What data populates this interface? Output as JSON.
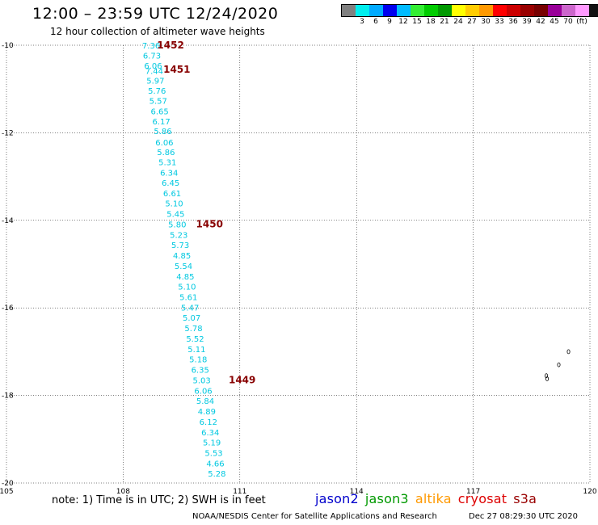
{
  "header": {
    "title": "12:00 – 23:59 UTC 12/24/2020",
    "subtitle": "12 hour collection of altimeter wave heights"
  },
  "legend": {
    "colors": [
      "#808080",
      "#00eeee",
      "#00aaff",
      "#0000ee",
      "#00bbff",
      "#33ee33",
      "#00cc00",
      "#009900",
      "#ffff00",
      "#ffcc00",
      "#ff9900",
      "#ff0000",
      "#cc0000",
      "#990000",
      "#770000",
      "#990099",
      "#cc66cc",
      "#ff99ff",
      "#111111"
    ],
    "labels": [
      {
        "text": "3",
        "idx": 1
      },
      {
        "text": "6",
        "idx": 2
      },
      {
        "text": "9",
        "idx": 3
      },
      {
        "text": "12",
        "idx": 4
      },
      {
        "text": "15",
        "idx": 5
      },
      {
        "text": "18",
        "idx": 6
      },
      {
        "text": "21",
        "idx": 7
      },
      {
        "text": "24",
        "idx": 8
      },
      {
        "text": "27",
        "idx": 9
      },
      {
        "text": "30",
        "idx": 10
      },
      {
        "text": "33",
        "idx": 11
      },
      {
        "text": "36",
        "idx": 12
      },
      {
        "text": "39",
        "idx": 13
      },
      {
        "text": "42",
        "idx": 14
      },
      {
        "text": "45",
        "idx": 15
      },
      {
        "text": "70",
        "idx": 16
      },
      {
        "text": "(ft)",
        "idx": 17
      }
    ]
  },
  "chart_data": {
    "type": "scatter",
    "xlim": [
      105,
      120
    ],
    "ylim": [
      -20,
      -10
    ],
    "x_ticks": [
      105,
      108,
      111,
      114,
      117,
      120
    ],
    "y_ticks": [
      -10,
      -12,
      -14,
      -16,
      -18,
      -20
    ],
    "grid": true,
    "points": [
      {
        "lon": 108.72,
        "lat": -10.0,
        "label": "7.36"
      },
      {
        "lon": 108.74,
        "lat": -10.23,
        "label": "6.73"
      },
      {
        "lon": 108.77,
        "lat": -10.46,
        "label": "6.06"
      },
      {
        "lon": 108.8,
        "lat": -10.58,
        "label": "7.44"
      },
      {
        "lon": 108.83,
        "lat": -10.8,
        "label": "5.97"
      },
      {
        "lon": 108.87,
        "lat": -11.03,
        "label": "5.76"
      },
      {
        "lon": 108.9,
        "lat": -11.26,
        "label": "5.57"
      },
      {
        "lon": 108.94,
        "lat": -11.5,
        "label": "6.65"
      },
      {
        "lon": 108.98,
        "lat": -11.73,
        "label": "6.17"
      },
      {
        "lon": 109.02,
        "lat": -11.96,
        "label": "5.86"
      },
      {
        "lon": 109.06,
        "lat": -12.21,
        "label": "6.06"
      },
      {
        "lon": 109.1,
        "lat": -12.44,
        "label": "5.86"
      },
      {
        "lon": 109.14,
        "lat": -12.67,
        "label": "5.31"
      },
      {
        "lon": 109.18,
        "lat": -12.91,
        "label": "6.34"
      },
      {
        "lon": 109.22,
        "lat": -13.14,
        "label": "6.45"
      },
      {
        "lon": 109.26,
        "lat": -13.38,
        "label": "6.61"
      },
      {
        "lon": 109.31,
        "lat": -13.61,
        "label": "5.10"
      },
      {
        "lon": 109.35,
        "lat": -13.85,
        "label": "5.45"
      },
      {
        "lon": 109.39,
        "lat": -14.09,
        "label": "5.80"
      },
      {
        "lon": 109.43,
        "lat": -14.33,
        "label": "5.23"
      },
      {
        "lon": 109.47,
        "lat": -14.56,
        "label": "5.73"
      },
      {
        "lon": 109.51,
        "lat": -14.8,
        "label": "4.85"
      },
      {
        "lon": 109.55,
        "lat": -15.04,
        "label": "5.54"
      },
      {
        "lon": 109.6,
        "lat": -15.28,
        "label": "4.85"
      },
      {
        "lon": 109.64,
        "lat": -15.51,
        "label": "5.10"
      },
      {
        "lon": 109.68,
        "lat": -15.75,
        "label": "5.61"
      },
      {
        "lon": 109.72,
        "lat": -15.99,
        "label": "5.47"
      },
      {
        "lon": 109.76,
        "lat": -16.22,
        "label": "5.07"
      },
      {
        "lon": 109.81,
        "lat": -16.46,
        "label": "5.78"
      },
      {
        "lon": 109.85,
        "lat": -16.7,
        "label": "5.52"
      },
      {
        "lon": 109.89,
        "lat": -16.94,
        "label": "5.11"
      },
      {
        "lon": 109.93,
        "lat": -17.17,
        "label": "5.18"
      },
      {
        "lon": 109.98,
        "lat": -17.41,
        "label": "6.35"
      },
      {
        "lon": 110.02,
        "lat": -17.65,
        "label": "5.03"
      },
      {
        "lon": 110.06,
        "lat": -17.89,
        "label": "6.06"
      },
      {
        "lon": 110.11,
        "lat": -18.12,
        "label": "5.84"
      },
      {
        "lon": 110.15,
        "lat": -18.36,
        "label": "4.89"
      },
      {
        "lon": 110.19,
        "lat": -18.6,
        "label": "6.12"
      },
      {
        "lon": 110.24,
        "lat": -18.84,
        "label": "6.34"
      },
      {
        "lon": 110.28,
        "lat": -19.07,
        "label": "5.19"
      },
      {
        "lon": 110.33,
        "lat": -19.31,
        "label": "5.53"
      },
      {
        "lon": 110.37,
        "lat": -19.55,
        "label": "4.66"
      },
      {
        "lon": 110.41,
        "lat": -19.78,
        "label": "5.28"
      }
    ],
    "time_labels": [
      {
        "lon": 109.22,
        "lat": -10.0,
        "label": "1452"
      },
      {
        "lon": 109.38,
        "lat": -10.55,
        "label": "1451"
      },
      {
        "lon": 110.22,
        "lat": -14.09,
        "label": "1450"
      },
      {
        "lon": 111.06,
        "lat": -17.65,
        "label": "1449"
      }
    ],
    "islands": [
      {
        "lon": 118.88,
        "lat": -17.55
      },
      {
        "lon": 119.2,
        "lat": -17.3
      },
      {
        "lon": 119.45,
        "lat": -17.0
      },
      {
        "lon": 118.9,
        "lat": -17.62
      }
    ]
  },
  "footer": {
    "note": "note: 1) Time is in UTC; 2) SWH is in feet",
    "satellites": [
      {
        "name": "jason2",
        "color": "#0000cc"
      },
      {
        "name": "jason3",
        "color": "#009900"
      },
      {
        "name": "altika",
        "color": "#ff9900"
      },
      {
        "name": "cryosat",
        "color": "#dd0000"
      },
      {
        "name": "s3a",
        "color": "#990000"
      }
    ],
    "credit": "NOAA/NESDIS Center for Satellite Applications and Research",
    "generated": "Dec 27 08:29:30 UTC 2020"
  },
  "colors": {
    "swh_label": "#00c8e0",
    "time_label": "#880000",
    "grid": "#000000"
  }
}
